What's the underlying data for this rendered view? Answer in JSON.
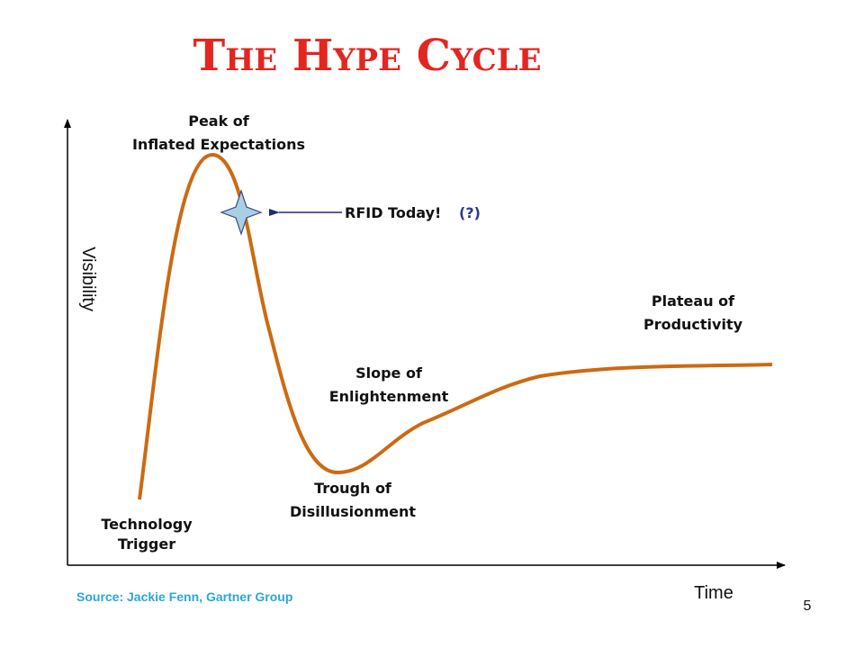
{
  "title": "The Hype Cycle",
  "phases": [
    {
      "lines": [
        "Technology",
        "Trigger"
      ]
    },
    {
      "lines": [
        "Peak of",
        "Inflated Expectations"
      ]
    },
    {
      "lines": [
        "Trough of",
        "Disillusionment"
      ]
    },
    {
      "lines": [
        "Slope of",
        "Enlightenment"
      ]
    },
    {
      "lines": [
        "Plateau of",
        "Productivity"
      ]
    }
  ],
  "callout": {
    "text": "RFID Today!",
    "question": "(?)"
  },
  "axes": {
    "y": "Visibility",
    "x": "Time"
  },
  "source": "Source: Jackie Fenn, Gartner Group",
  "page_number": "5"
}
